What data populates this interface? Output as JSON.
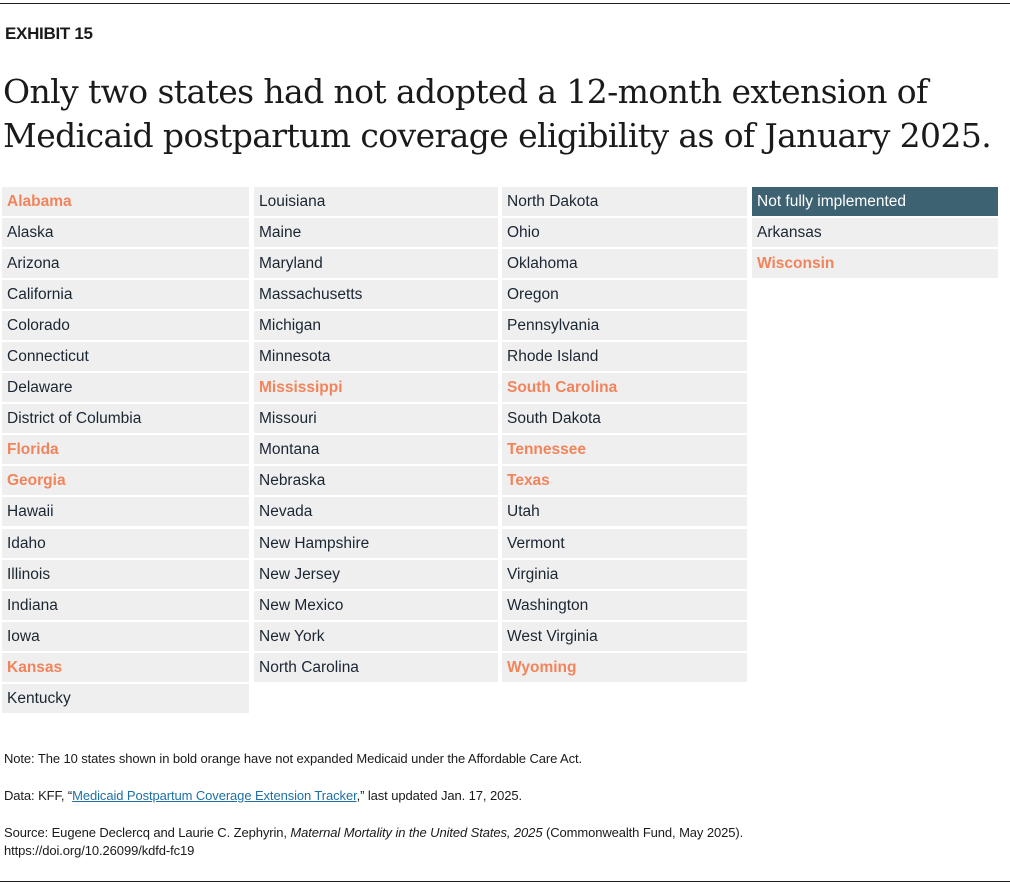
{
  "exhibit_label": "EXHIBIT 15",
  "title": "Only two states had not adopted a 12-month extension of Medicaid postpartum coverage eligibility as of January 2025.",
  "colors": {
    "highlight": "#f2845c",
    "header_bg": "#3d6272",
    "cell_bg": "#efefef"
  },
  "chart_data": {
    "type": "table",
    "columns": [
      [
        {
          "name": "Alabama",
          "bold": true
        },
        {
          "name": "Alaska"
        },
        {
          "name": "Arizona"
        },
        {
          "name": "California"
        },
        {
          "name": "Colorado"
        },
        {
          "name": "Connecticut"
        },
        {
          "name": "Delaware"
        },
        {
          "name": "District of Columbia"
        },
        {
          "name": "Florida",
          "bold": true
        },
        {
          "name": "Georgia",
          "bold": true
        },
        {
          "name": "Hawaii"
        },
        {
          "name": "Idaho"
        },
        {
          "name": "Illinois"
        },
        {
          "name": "Indiana"
        },
        {
          "name": "Iowa"
        },
        {
          "name": "Kansas",
          "bold": true
        },
        {
          "name": "Kentucky"
        }
      ],
      [
        {
          "name": "Louisiana"
        },
        {
          "name": "Maine"
        },
        {
          "name": "Maryland"
        },
        {
          "name": "Massachusetts"
        },
        {
          "name": "Michigan"
        },
        {
          "name": "Minnesota"
        },
        {
          "name": "Mississippi",
          "bold": true
        },
        {
          "name": "Missouri"
        },
        {
          "name": "Montana"
        },
        {
          "name": "Nebraska"
        },
        {
          "name": "Nevada"
        },
        {
          "name": "New Hampshire"
        },
        {
          "name": "New Jersey"
        },
        {
          "name": "New Mexico"
        },
        {
          "name": "New York"
        },
        {
          "name": "North Carolina"
        }
      ],
      [
        {
          "name": "North Dakota"
        },
        {
          "name": "Ohio"
        },
        {
          "name": "Oklahoma"
        },
        {
          "name": "Oregon"
        },
        {
          "name": "Pennsylvania"
        },
        {
          "name": "Rhode Island"
        },
        {
          "name": "South Carolina",
          "bold": true
        },
        {
          "name": "South Dakota"
        },
        {
          "name": "Tennessee",
          "bold": true
        },
        {
          "name": "Texas",
          "bold": true
        },
        {
          "name": "Utah"
        },
        {
          "name": "Vermont"
        },
        {
          "name": "Virginia"
        },
        {
          "name": "Washington"
        },
        {
          "name": "West Virginia"
        },
        {
          "name": "Wyoming",
          "bold": true
        }
      ],
      [
        {
          "name": "Not fully implemented",
          "header": true
        },
        {
          "name": "Arkansas"
        },
        {
          "name": "Wisconsin",
          "bold": true
        }
      ]
    ]
  },
  "footer": {
    "note": "Note: The 10 states shown in bold orange have not expanded Medicaid under the Affordable Care Act.",
    "data_prefix": "Data: KFF, “",
    "data_link": "Medicaid Postpartum Coverage Extension Tracker",
    "data_suffix": ",” last updated Jan. 17, 2025.",
    "source_prefix": "Source: Eugene Declercq and Laurie C. Zephyrin, ",
    "source_title": "Maternal Mortality in the United States, 2025",
    "source_suffix": " (Commonwealth Fund, May 2025).",
    "doi": "https://doi.org/10.26099/kdfd-fc19"
  }
}
